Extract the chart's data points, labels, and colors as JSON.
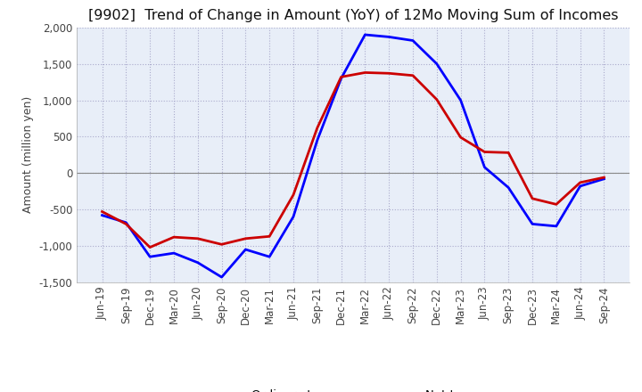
{
  "title": "[9902]  Trend of Change in Amount (YoY) of 12Mo Moving Sum of Incomes",
  "ylabel": "Amount (million yen)",
  "ylim": [
    -1500,
    2000
  ],
  "yticks": [
    -1500,
    -1000,
    -500,
    0,
    500,
    1000,
    1500,
    2000
  ],
  "x_labels": [
    "Jun-19",
    "Sep-19",
    "Dec-19",
    "Mar-20",
    "Jun-20",
    "Sep-20",
    "Dec-20",
    "Mar-21",
    "Jun-21",
    "Sep-21",
    "Dec-21",
    "Mar-22",
    "Jun-22",
    "Sep-22",
    "Dec-22",
    "Mar-23",
    "Jun-23",
    "Sep-23",
    "Dec-23",
    "Mar-24",
    "Jun-24",
    "Sep-24"
  ],
  "ordinary_income": [
    -580,
    -680,
    -1150,
    -1100,
    -1230,
    -1430,
    -1050,
    -1150,
    -600,
    450,
    1300,
    1900,
    1870,
    1820,
    1500,
    1000,
    80,
    -200,
    -700,
    -730,
    -180,
    -80
  ],
  "net_income": [
    -530,
    -700,
    -1020,
    -880,
    -900,
    -980,
    -900,
    -870,
    -300,
    620,
    1320,
    1380,
    1370,
    1340,
    1010,
    490,
    290,
    280,
    -350,
    -430,
    -130,
    -60
  ],
  "ordinary_color": "#0000ff",
  "net_color": "#cc0000",
  "background_color": "#ffffff",
  "plot_bg_color": "#e8eef8",
  "grid_color": "#aaaacc",
  "zero_line_color": "#888888",
  "title_color": "#111111",
  "title_fontsize": 11.5,
  "label_fontsize": 9,
  "tick_fontsize": 8.5,
  "legend_fontsize": 9.5
}
